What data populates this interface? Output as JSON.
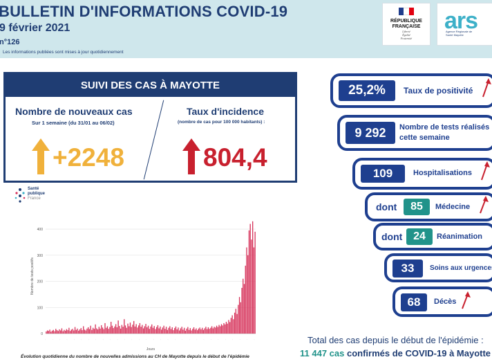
{
  "header": {
    "title": "BULLETIN D'INFORMATIONS COVID-19",
    "date": "9 février 2021",
    "number": "n°126",
    "note": "Les informations publiées sont mises à jour quotidiennement"
  },
  "logos": {
    "rf_line1": "RÉPUBLIQUE",
    "rf_line2": "FRANÇAISE",
    "rf_motto1": "Liberté",
    "rf_motto2": "Égalité",
    "rf_motto3": "Fraternité",
    "ars_text": "ars",
    "ars_sub": "Agence Régionale de Santé Mayotte",
    "spf_line1": "Santé",
    "spf_line2": "publique",
    "spf_line3": "France"
  },
  "suivi": {
    "heading": "SUIVI DES CAS À MAYOTTE",
    "new_cases_title": "Nombre de nouveaux cas",
    "new_cases_sub": "Sur 1 semaine (du 31/01 au 06/02)",
    "new_cases_value": "+2248",
    "incidence_title": "Taux d'incidence",
    "incidence_sub": "(nombre de cas pour 100 000 habitants) :",
    "incidence_value": "804,4"
  },
  "stats": {
    "positivity_value": "25,2%",
    "positivity_label": "Taux de positivité",
    "tests_value": "9 292",
    "tests_label1": "Nombre de tests réalisés",
    "tests_label2": "cette semaine",
    "hosp_value": "109",
    "hosp_label": "Hospitalisations",
    "dont": "dont",
    "medecine_value": "85",
    "medecine_label": "Médecine",
    "rea_value": "24",
    "rea_label": "Réanimation",
    "urg_value": "33",
    "urg_label": "Soins aux urgences",
    "deces_value": "68",
    "deces_label": "Décès"
  },
  "totals": {
    "line1": "Total des cas depuis le début de l'épidémie :",
    "count": "11 447 cas",
    "line2_rest": " confirmés de COVID-19 à Mayotte"
  },
  "colors": {
    "navy": "#1f3d73",
    "pill_blue": "#1e3f8f",
    "teal": "#21938a",
    "orange": "#f0b13b",
    "red": "#c8202e",
    "bar": "#d6325a"
  },
  "chart_data": {
    "type": "bar",
    "title": "",
    "caption": "Évolution quotidienne du nombre de nouvelles admissions au CH de Mayotte depuis le début de l'épidémie",
    "xlabel": "Jours",
    "ylabel": "Nombre de tests positifs",
    "yticks": [
      "0",
      "100",
      "200",
      "300",
      "400"
    ],
    "ylim": [
      0,
      440
    ],
    "values": [
      8,
      12,
      10,
      15,
      7,
      11,
      14,
      9,
      18,
      13,
      10,
      16,
      12,
      20,
      9,
      14,
      11,
      17,
      13,
      22,
      10,
      15,
      18,
      12,
      25,
      14,
      19,
      11,
      16,
      21,
      13,
      28,
      15,
      12,
      19,
      24,
      17,
      30,
      14,
      22,
      18,
      35,
      20,
      16,
      26,
      19,
      32,
      23,
      17,
      40,
      22,
      28,
      18,
      25,
      45,
      30,
      21,
      27,
      36,
      24,
      50,
      29,
      19,
      33,
      26,
      55,
      31,
      22,
      38,
      28,
      42,
      25,
      34,
      48,
      27,
      36,
      23,
      31,
      40,
      26,
      33,
      20,
      28,
      37,
      24,
      30,
      18,
      27,
      35,
      22,
      29,
      17,
      25,
      32,
      20,
      27,
      15,
      23,
      30,
      18,
      26,
      14,
      22,
      28,
      17,
      24,
      13,
      21,
      27,
      16,
      23,
      12,
      20,
      26,
      15,
      22,
      11,
      19,
      25,
      14,
      21,
      12,
      18,
      24,
      15,
      20,
      13,
      19,
      23,
      16,
      22,
      14,
      20,
      26,
      17,
      24,
      18,
      22,
      28,
      20,
      26,
      23,
      30,
      25,
      33,
      28,
      36,
      31,
      40,
      35,
      45,
      38,
      52,
      44,
      60,
      70,
      55,
      80,
      95,
      75,
      110,
      140,
      120,
      175,
      210,
      190,
      260,
      330,
      300,
      395,
      420,
      360,
      430,
      330,
      390
    ]
  }
}
